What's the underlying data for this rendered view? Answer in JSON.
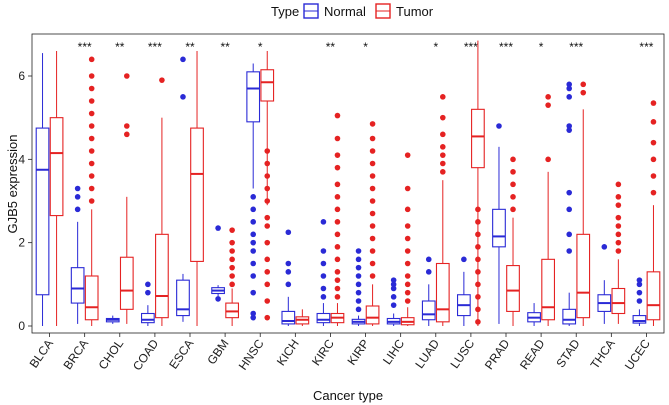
{
  "chart_data": {
    "type": "boxplot",
    "title": "",
    "xlabel": "Cancer type",
    "ylabel": "GJB5 expression",
    "ylim": [
      0,
      7.2
    ],
    "yticks": [
      0,
      2,
      4,
      6
    ],
    "legend": {
      "title": "Type",
      "position": "top",
      "entries": [
        "Normal",
        "Tumor"
      ],
      "colors": [
        "#2a2ad6",
        "#e52222"
      ]
    },
    "categories": [
      "BLCA",
      "BRCA",
      "CHOL",
      "COAD",
      "ESCA",
      "GBM",
      "HNSC",
      "KICH",
      "KIRC",
      "KIRP",
      "LIHC",
      "LUAD",
      "LUSC",
      "PRAD",
      "READ",
      "STAD",
      "THCA",
      "UCEC"
    ],
    "significance": [
      "",
      "***",
      "**",
      "***",
      "**",
      "**",
      "*",
      "",
      "**",
      "*",
      "",
      "*",
      "***",
      "***",
      "*",
      "***",
      "",
      "***"
    ],
    "series": [
      {
        "name": "Normal",
        "color": "#2a2ad6",
        "boxes": [
          {
            "min": 0.0,
            "q1": 0.75,
            "median": 3.75,
            "q3": 4.75,
            "max": 6.55,
            "outliers": []
          },
          {
            "min": 0.05,
            "q1": 0.55,
            "median": 0.9,
            "q3": 1.4,
            "max": 2.5,
            "outliers": [
              2.8,
              3.1,
              3.3
            ]
          },
          {
            "min": 0.05,
            "q1": 0.1,
            "median": 0.15,
            "q3": 0.18,
            "max": 0.25,
            "outliers": []
          },
          {
            "min": 0.0,
            "q1": 0.08,
            "median": 0.15,
            "q3": 0.3,
            "max": 0.5,
            "outliers": [
              0.8,
              1.0
            ]
          },
          {
            "min": 0.1,
            "q1": 0.25,
            "median": 0.4,
            "q3": 1.1,
            "max": 1.25,
            "outliers": [
              5.5,
              6.4
            ]
          },
          {
            "min": 0.7,
            "q1": 0.78,
            "median": 0.85,
            "q3": 0.92,
            "max": 0.98,
            "outliers": [
              0.65,
              2.35
            ]
          },
          {
            "min": 3.3,
            "q1": 4.9,
            "median": 5.7,
            "q3": 6.1,
            "max": 6.3,
            "outliers": [
              0.2,
              0.3,
              0.8,
              1.2,
              1.5,
              1.8,
              2.0,
              2.2,
              2.5,
              2.8,
              3.1
            ]
          },
          {
            "min": 0.0,
            "q1": 0.05,
            "median": 0.12,
            "q3": 0.35,
            "max": 0.7,
            "outliers": [
              1.0,
              1.3,
              1.5,
              2.25
            ]
          },
          {
            "min": 0.0,
            "q1": 0.08,
            "median": 0.15,
            "q3": 0.3,
            "max": 0.55,
            "outliers": [
              0.7,
              0.9,
              1.2,
              1.5,
              1.8,
              2.5
            ]
          },
          {
            "min": 0.0,
            "q1": 0.05,
            "median": 0.1,
            "q3": 0.16,
            "max": 0.25,
            "outliers": [
              0.4,
              0.6,
              0.8,
              1.0,
              1.2,
              1.4,
              1.6,
              1.8
            ]
          },
          {
            "min": 0.0,
            "q1": 0.05,
            "median": 0.1,
            "q3": 0.18,
            "max": 0.3,
            "outliers": [
              0.5,
              0.7,
              0.9,
              1.0,
              1.1
            ]
          },
          {
            "min": 0.0,
            "q1": 0.15,
            "median": 0.28,
            "q3": 0.6,
            "max": 1.0,
            "outliers": [
              1.3,
              1.6
            ]
          },
          {
            "min": 0.0,
            "q1": 0.25,
            "median": 0.5,
            "q3": 0.75,
            "max": 1.3,
            "outliers": [
              1.6
            ]
          },
          {
            "min": 0.05,
            "q1": 1.9,
            "median": 2.15,
            "q3": 2.8,
            "max": 4.3,
            "outliers": [
              4.8
            ]
          },
          {
            "min": 0.0,
            "q1": 0.1,
            "median": 0.2,
            "q3": 0.32,
            "max": 0.55,
            "outliers": []
          },
          {
            "min": 0.0,
            "q1": 0.05,
            "median": 0.15,
            "q3": 0.4,
            "max": 0.8,
            "outliers": [
              1.8,
              2.2,
              2.8,
              3.2,
              4.7,
              4.8,
              5.5,
              5.7,
              5.8
            ]
          },
          {
            "min": 0.05,
            "q1": 0.35,
            "median": 0.55,
            "q3": 0.75,
            "max": 1.1,
            "outliers": [
              1.9
            ]
          },
          {
            "min": 0.0,
            "q1": 0.07,
            "median": 0.12,
            "q3": 0.25,
            "max": 0.4,
            "outliers": [
              0.6,
              0.8,
              1.0,
              1.1
            ]
          }
        ]
      },
      {
        "name": "Tumor",
        "color": "#e52222",
        "boxes": [
          {
            "min": 0.0,
            "q1": 2.65,
            "median": 4.15,
            "q3": 5.0,
            "max": 6.6,
            "outliers": []
          },
          {
            "min": 0.0,
            "q1": 0.15,
            "median": 0.45,
            "q3": 1.2,
            "max": 2.8,
            "outliers": [
              3.0,
              3.3,
              3.6,
              3.9,
              4.2,
              4.5,
              4.8,
              5.1,
              5.4,
              5.7,
              6.0,
              6.4
            ]
          },
          {
            "min": 0.05,
            "q1": 0.4,
            "median": 0.85,
            "q3": 1.65,
            "max": 3.1,
            "outliers": [
              4.6,
              4.8,
              6.0
            ]
          },
          {
            "min": 0.0,
            "q1": 0.2,
            "median": 0.72,
            "q3": 2.2,
            "max": 5.0,
            "outliers": [
              5.9
            ]
          },
          {
            "min": 0.0,
            "q1": 1.55,
            "median": 3.65,
            "q3": 4.75,
            "max": 6.6,
            "outliers": []
          },
          {
            "min": 0.0,
            "q1": 0.2,
            "median": 0.35,
            "q3": 0.55,
            "max": 0.9,
            "outliers": [
              1.0,
              1.2,
              1.4,
              1.6,
              1.8,
              2.0,
              2.3
            ]
          },
          {
            "min": 2.9,
            "q1": 5.4,
            "median": 5.85,
            "q3": 6.15,
            "max": 6.6,
            "outliers": [
              0.2,
              0.6,
              1.0,
              1.3,
              1.6,
              2.0,
              2.4,
              2.6,
              3.0,
              3.3,
              3.6,
              3.9,
              4.2
            ]
          },
          {
            "min": 0.0,
            "q1": 0.05,
            "median": 0.15,
            "q3": 0.22,
            "max": 0.4,
            "outliers": []
          },
          {
            "min": 0.0,
            "q1": 0.08,
            "median": 0.2,
            "q3": 0.3,
            "max": 0.55,
            "outliers": [
              0.7,
              0.9,
              1.1,
              1.3,
              1.6,
              1.9,
              2.2,
              2.5,
              2.8,
              3.1,
              3.4,
              3.8,
              4.1,
              4.5,
              5.05
            ]
          },
          {
            "min": 0.0,
            "q1": 0.05,
            "median": 0.2,
            "q3": 0.48,
            "max": 1.0,
            "outliers": [
              1.2,
              1.5,
              1.8,
              2.1,
              2.4,
              2.7,
              3.0,
              3.3,
              3.6,
              3.9,
              4.2,
              4.5,
              4.85
            ]
          },
          {
            "min": 0.0,
            "q1": 0.03,
            "median": 0.1,
            "q3": 0.2,
            "max": 0.45,
            "outliers": [
              0.6,
              0.8,
              1.0,
              1.2,
              1.5,
              1.8,
              2.1,
              2.4,
              2.8,
              3.3,
              4.1
            ]
          },
          {
            "min": 0.0,
            "q1": 0.1,
            "median": 0.4,
            "q3": 1.5,
            "max": 3.5,
            "outliers": [
              3.7,
              3.9,
              4.1,
              4.3,
              4.6,
              5.0,
              5.5
            ]
          },
          {
            "min": 0.0,
            "q1": 3.8,
            "median": 4.55,
            "q3": 5.2,
            "max": 6.85,
            "outliers": [
              0.1,
              0.4,
              0.7,
              1.0,
              1.3,
              1.6,
              1.9,
              2.2,
              2.5,
              2.8
            ]
          },
          {
            "min": 0.0,
            "q1": 0.35,
            "median": 0.85,
            "q3": 1.45,
            "max": 2.6,
            "outliers": [
              2.8,
              3.1,
              3.4,
              3.7,
              4.0
            ]
          },
          {
            "min": 0.0,
            "q1": 0.15,
            "median": 0.45,
            "q3": 1.6,
            "max": 3.7,
            "outliers": [
              4.0,
              5.3,
              5.5
            ]
          },
          {
            "min": 0.0,
            "q1": 0.2,
            "median": 0.8,
            "q3": 2.2,
            "max": 5.2,
            "outliers": [
              5.6,
              5.8
            ]
          },
          {
            "min": 0.05,
            "q1": 0.3,
            "median": 0.55,
            "q3": 0.9,
            "max": 1.6,
            "outliers": [
              1.8,
              2.0,
              2.2,
              2.4,
              2.6,
              2.9,
              3.1,
              3.4
            ]
          },
          {
            "min": 0.0,
            "q1": 0.15,
            "median": 0.5,
            "q3": 1.3,
            "max": 2.9,
            "outliers": [
              3.2,
              3.6,
              4.0,
              4.4,
              4.9,
              5.35
            ]
          }
        ]
      }
    ]
  }
}
